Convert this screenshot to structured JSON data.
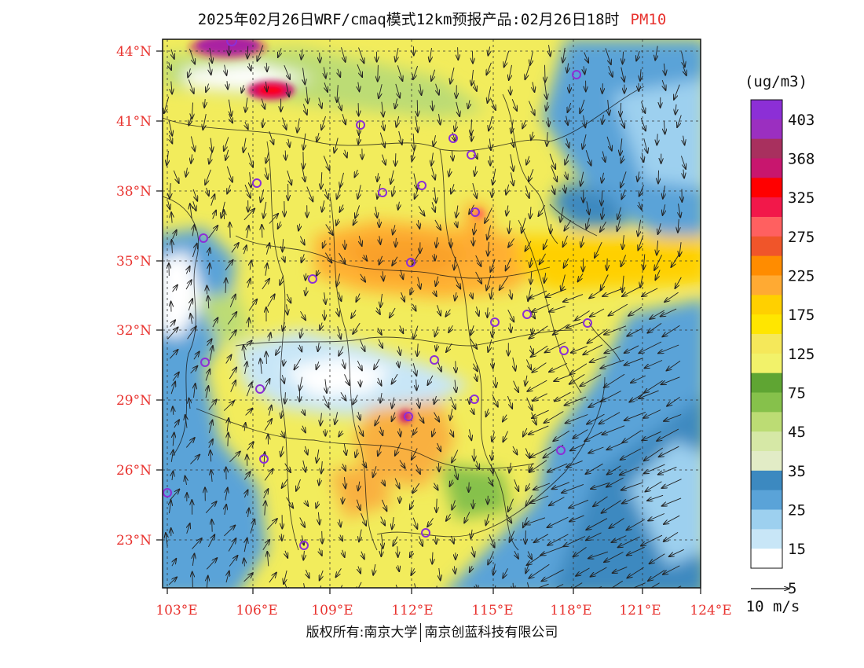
{
  "title": {
    "text": "2025年02月26日WRF/cmaq模式12km预报产品:02月26日18时",
    "pollutant": "PM10"
  },
  "map": {
    "lon_labels": [
      "103°E",
      "106°E",
      "109°E",
      "112°E",
      "115°E",
      "118°E",
      "121°E",
      "124°E"
    ],
    "lat_labels": [
      "44°N",
      "41°N",
      "38°N",
      "35°N",
      "32°N",
      "29°N",
      "26°N",
      "23°N"
    ],
    "lon_range": [
      102.8,
      124.0
    ],
    "lat_range": [
      21.0,
      44.4
    ]
  },
  "colorbar": {
    "unit": "(ug/m3)",
    "labels": [
      "403",
      "368",
      "325",
      "275",
      "225",
      "175",
      "125",
      "75",
      "45",
      "35",
      "25",
      "15",
      "5"
    ],
    "colors": [
      "#8c2fd6",
      "#9b2fc0",
      "#a8305e",
      "#c8166e",
      "#ff0000",
      "#f2184a",
      "#ff6060",
      "#f0552a",
      "#ff8c00",
      "#ffaa33",
      "#ffd000",
      "#ffe600",
      "#f5e85a",
      "#f2f26a",
      "#5fa533",
      "#86c14b",
      "#bcdc74",
      "#d6e8a6",
      "#e2ecc6",
      "#3c89c0",
      "#5aa3d8",
      "#9dd0ef",
      "#c8e6f7",
      "#ffffff"
    ]
  },
  "wind_scale": {
    "label": "10 m/s"
  },
  "footer": {
    "left": "版权所有:南京大学",
    "right": "南京创蓝科技有限公司"
  }
}
